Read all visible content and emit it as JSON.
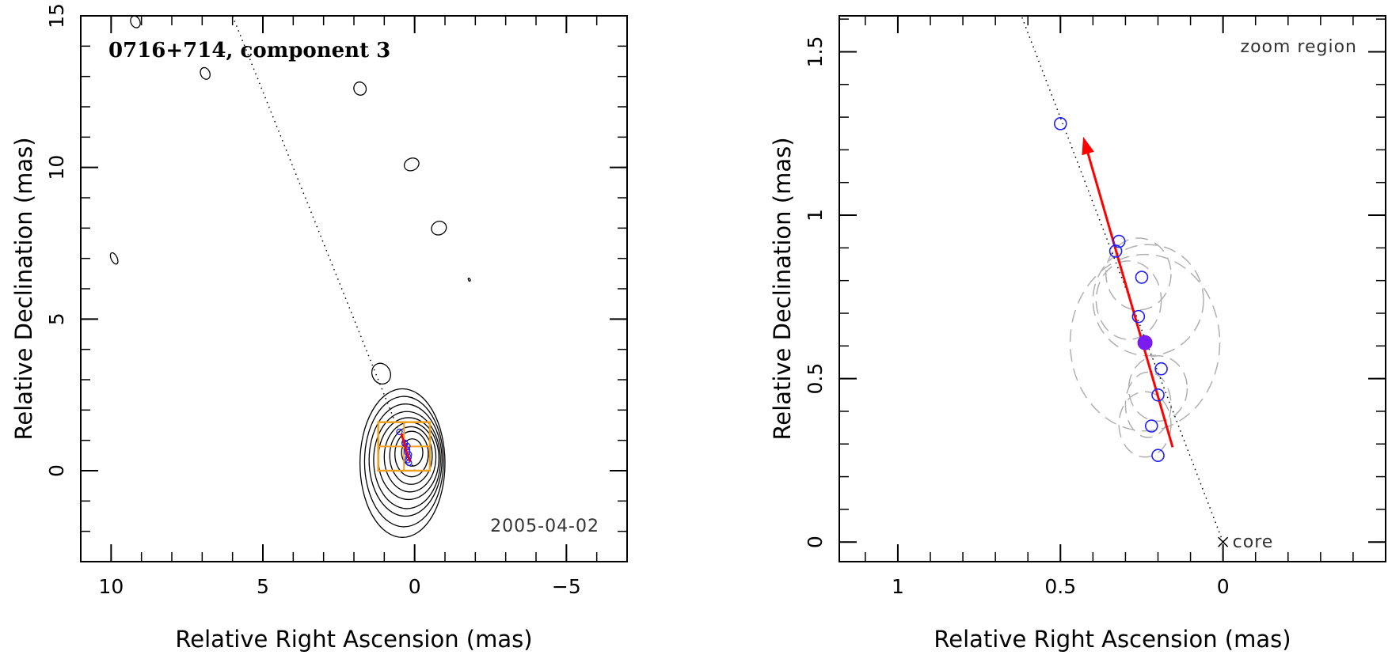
{
  "chart_data": [
    {
      "type": "scatter",
      "panel": "left",
      "title": "0716+714, component 3",
      "annotation": "2005-04-02",
      "xlabel": "Relative Right Ascension (mas)",
      "ylabel": "Relative Declination (mas)",
      "xlim": [
        11,
        -7
      ],
      "ylim": [
        -3,
        15
      ],
      "x_ticks": [
        10,
        5,
        0,
        -5
      ],
      "x_tick_labels": [
        "10",
        "5",
        "0",
        "−5"
      ],
      "y_ticks": [
        0,
        5,
        10,
        15
      ],
      "y_tick_labels": [
        "0",
        "5",
        "10",
        "15"
      ],
      "colors": {
        "contour": "#000000",
        "zoom_box": "#f0a020",
        "motion": "#ff0000",
        "points": "#2020ff"
      },
      "jet_axis": {
        "from": [
          0,
          0
        ],
        "to": [
          6,
          15
        ]
      },
      "contour_levels": [
        {
          "cx": 0.08,
          "cy": 0.6,
          "rx": 0.35,
          "ry": 0.45
        },
        {
          "cx": 0.1,
          "cy": 0.55,
          "rx": 0.55,
          "ry": 0.75
        },
        {
          "cx": 0.12,
          "cy": 0.5,
          "rx": 0.7,
          "ry": 0.95
        },
        {
          "cx": 0.15,
          "cy": 0.45,
          "rx": 0.85,
          "ry": 1.15
        },
        {
          "cx": 0.2,
          "cy": 0.4,
          "rx": 1.0,
          "ry": 1.35
        },
        {
          "cx": 0.25,
          "cy": 0.35,
          "rx": 1.1,
          "ry": 1.6
        },
        {
          "cx": 0.3,
          "cy": 0.35,
          "rx": 1.2,
          "ry": 1.85
        },
        {
          "cx": 0.35,
          "cy": 0.3,
          "rx": 1.3,
          "ry": 2.15
        },
        {
          "cx": 0.4,
          "cy": 0.25,
          "rx": 1.4,
          "ry": 2.45
        }
      ],
      "isolated_contours": [
        {
          "x": 1.1,
          "y": 3.2,
          "rx": 0.3,
          "ry": 0.35
        },
        {
          "x": 9.9,
          "y": 7.0,
          "rx": 0.1,
          "ry": 0.2
        },
        {
          "x": 9.2,
          "y": 14.8,
          "rx": 0.15,
          "ry": 0.2
        },
        {
          "x": 6.9,
          "y": 13.1,
          "rx": 0.15,
          "ry": 0.2
        },
        {
          "x": 1.8,
          "y": 12.6,
          "rx": 0.2,
          "ry": 0.22
        },
        {
          "x": 0.1,
          "y": 10.1,
          "rx": 0.25,
          "ry": 0.2
        },
        {
          "x": -0.8,
          "y": 8.0,
          "rx": 0.25,
          "ry": 0.22
        },
        {
          "x": -1.8,
          "y": 6.3,
          "rx": 0.03,
          "ry": 0.05
        }
      ],
      "zoom_box": {
        "x": [
          1.2,
          -0.5
        ],
        "y": [
          0,
          1.6
        ]
      },
      "motion_vector": {
        "from": [
          0.16,
          0.3
        ],
        "to": [
          0.44,
          1.22
        ]
      },
      "points": [
        {
          "x": 0.5,
          "y": 1.28
        },
        {
          "x": 0.33,
          "y": 0.92
        },
        {
          "x": 0.32,
          "y": 0.89
        },
        {
          "x": 0.24,
          "y": 0.81
        },
        {
          "x": 0.25,
          "y": 0.69
        },
        {
          "x": 0.24,
          "y": 0.61
        },
        {
          "x": 0.19,
          "y": 0.53
        },
        {
          "x": 0.2,
          "y": 0.45
        },
        {
          "x": 0.22,
          "y": 0.35
        },
        {
          "x": 0.19,
          "y": 0.26
        }
      ]
    },
    {
      "type": "scatter",
      "panel": "right",
      "title": "zoom region",
      "core_label": "core",
      "xlabel": "Relative Right Ascension (mas)",
      "ylabel": "Relative Declination (mas)",
      "xlim": [
        1.18,
        -0.5
      ],
      "ylim": [
        -0.06,
        1.61
      ],
      "x_ticks": [
        1,
        0.5,
        0
      ],
      "x_tick_labels": [
        "1",
        "0.5",
        "0"
      ],
      "y_ticks": [
        0,
        0.5,
        1,
        1.5
      ],
      "y_tick_labels": [
        "0",
        "0.5",
        "1",
        "1.5"
      ],
      "colors": {
        "motion": "#ff0000",
        "points": "#2020ff",
        "filled_point": "#7a1cf0",
        "beams": "#b0b0b0"
      },
      "jet_axis": {
        "from": [
          0,
          0
        ],
        "to": [
          0.62,
          1.61
        ]
      },
      "motion_vector": {
        "from": [
          0.155,
          0.29
        ],
        "to": [
          0.43,
          1.24
        ]
      },
      "core": {
        "x": 0,
        "y": 0
      },
      "filled_point": {
        "x": 0.24,
        "y": 0.61
      },
      "points": [
        {
          "x": 0.5,
          "y": 1.28
        },
        {
          "x": 0.32,
          "y": 0.92
        },
        {
          "x": 0.33,
          "y": 0.89
        },
        {
          "x": 0.25,
          "y": 0.81
        },
        {
          "x": 0.26,
          "y": 0.69
        },
        {
          "x": 0.19,
          "y": 0.53
        },
        {
          "x": 0.2,
          "y": 0.45
        },
        {
          "x": 0.22,
          "y": 0.355
        },
        {
          "x": 0.2,
          "y": 0.265
        }
      ],
      "beams": [
        {
          "x": 0.24,
          "y": 0.61,
          "rx": 0.23,
          "ry": 0.27
        },
        {
          "x": 0.26,
          "y": 0.82,
          "rx": 0.1,
          "ry": 0.11
        },
        {
          "x": 0.23,
          "y": 0.74,
          "rx": 0.17,
          "ry": 0.17
        },
        {
          "x": 0.29,
          "y": 0.74,
          "rx": 0.1,
          "ry": 0.12
        },
        {
          "x": 0.2,
          "y": 0.47,
          "rx": 0.09,
          "ry": 0.1
        },
        {
          "x": 0.23,
          "y": 0.42,
          "rx": 0.07,
          "ry": 0.1
        },
        {
          "x": 0.24,
          "y": 0.36,
          "rx": 0.08,
          "ry": 0.1
        }
      ]
    }
  ]
}
